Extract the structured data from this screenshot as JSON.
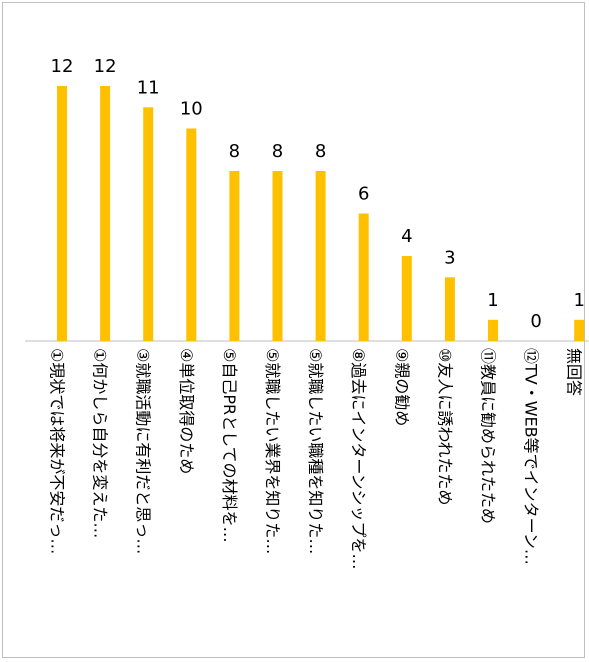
{
  "chart_data": {
    "type": "bar",
    "categories": [
      "①現状では将来が不安だっ…",
      "①何かしら自分を変えた…",
      "③就職活動に有利だと思っ…",
      "④単位取得のため",
      "⑤自己PRとしての材料を…",
      "⑤就職したい業界を知りた…",
      "⑤就職したい職種を知りた…",
      "⑧過去にインターンシップを…",
      "⑨親の勧め",
      "⑩友人に誘われたため",
      "⑪教員に勧められたため",
      "⑫TV・WEB等でインターン…",
      "無回答"
    ],
    "values": [
      12,
      12,
      11,
      10,
      8,
      8,
      8,
      6,
      4,
      3,
      1,
      0,
      1
    ],
    "ylim": [
      0,
      12
    ],
    "grid": false,
    "legend": "none",
    "colors": {
      "bar": "#FFC000",
      "axis": "#bfbfbf",
      "border": "#bfbfbf"
    }
  }
}
